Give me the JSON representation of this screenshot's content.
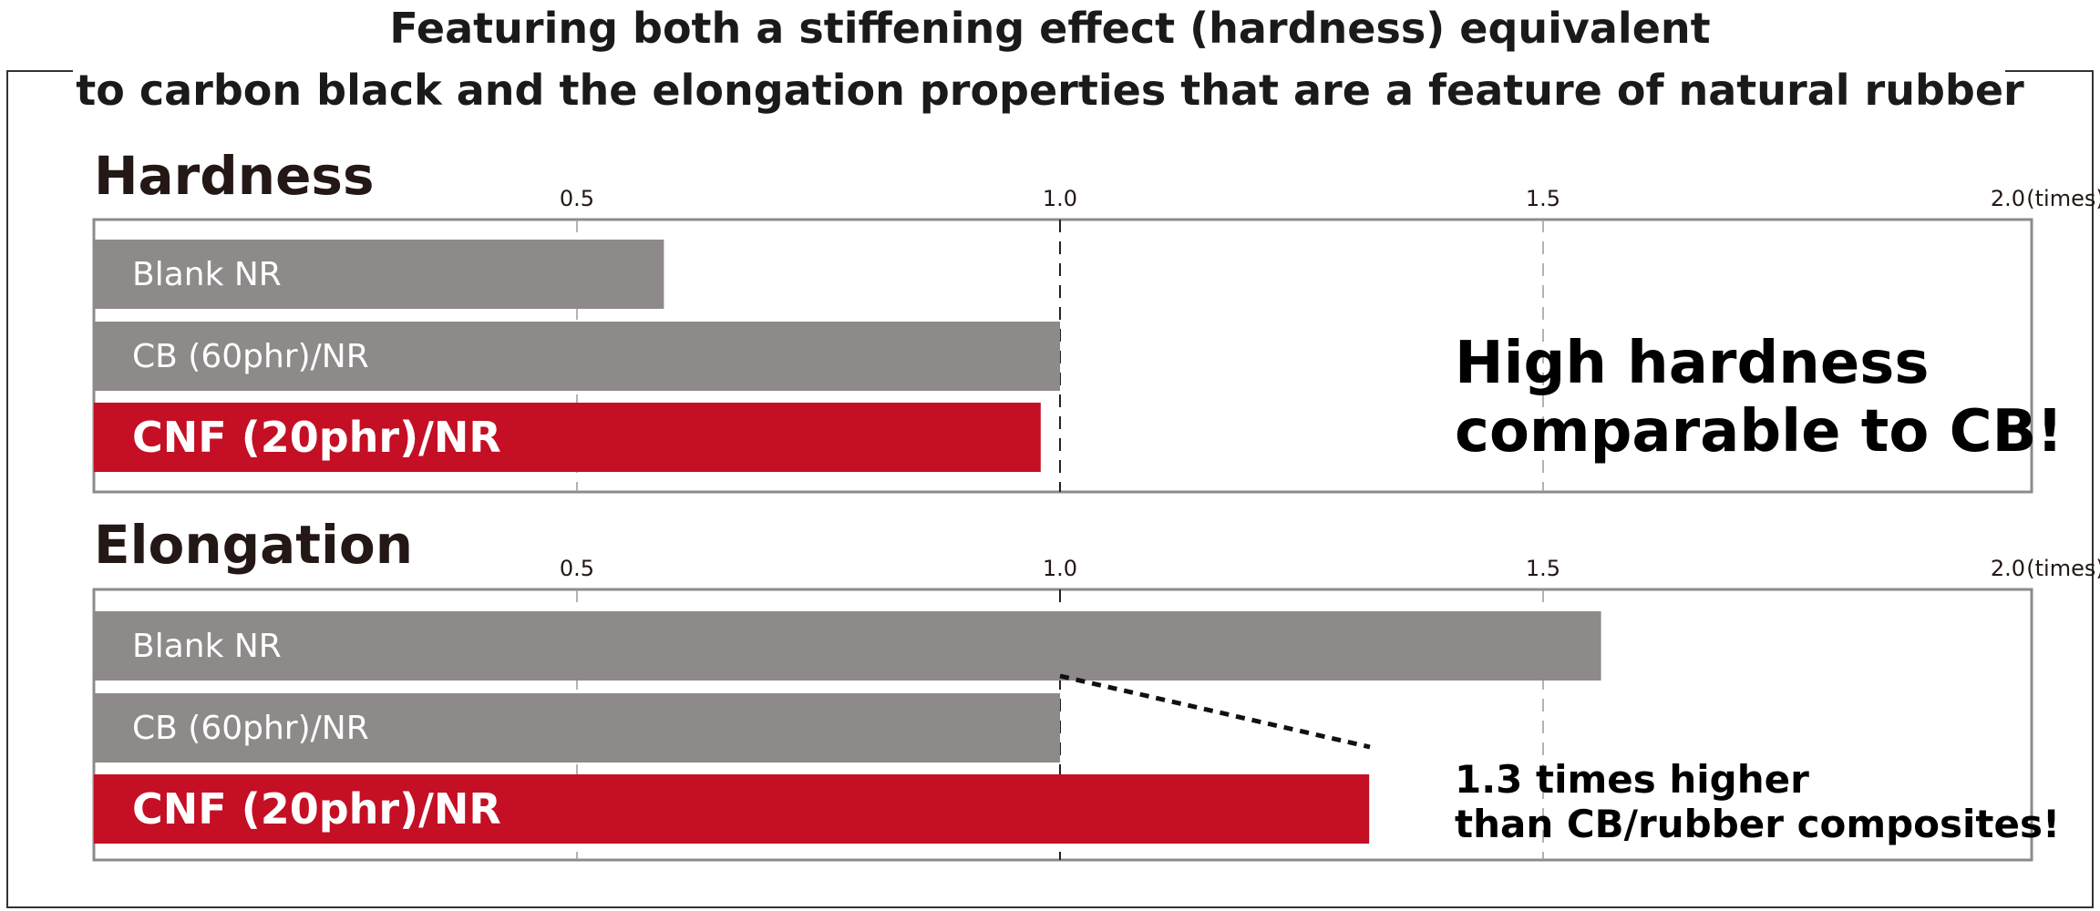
{
  "title_lines": [
    "Featuring both a stiffening effect (hardness) equivalent",
    "to carbon black and the elongation properties that are a feature of natural rubber"
  ],
  "colors": {
    "gray_bar": "#8e8a89",
    "red_bar": "#c40f24",
    "frame": "#8b8b8b"
  },
  "chart_data": [
    {
      "type": "bar",
      "orientation": "horizontal",
      "title": "Hardness",
      "unit": "(times)",
      "xticks": [
        "0.5",
        "1.0",
        "1.5",
        "2.0"
      ],
      "xlim": [
        0,
        2.0
      ],
      "reference_line": 1.0,
      "categories": [
        "Blank NR",
        "CB (60phr)/NR",
        "CNF (20phr)/NR"
      ],
      "values": [
        0.59,
        1.0,
        0.98
      ],
      "highlight": "CNF (20phr)/NR",
      "annotation": [
        "High hardness",
        "comparable to CB!"
      ]
    },
    {
      "type": "bar",
      "orientation": "horizontal",
      "title": "Elongation",
      "unit": "(times)",
      "xticks": [
        "0.5",
        "1.0",
        "1.5",
        "2.0"
      ],
      "xlim": [
        0,
        2.0
      ],
      "reference_line": 1.0,
      "categories": [
        "Blank NR",
        "CB (60phr)/NR",
        "CNF (20phr)/NR"
      ],
      "values": [
        1.56,
        1.0,
        1.32
      ],
      "highlight": "CNF (20phr)/NR",
      "annotation": [
        "1.3 times higher",
        "than CB/rubber composites!"
      ]
    }
  ]
}
